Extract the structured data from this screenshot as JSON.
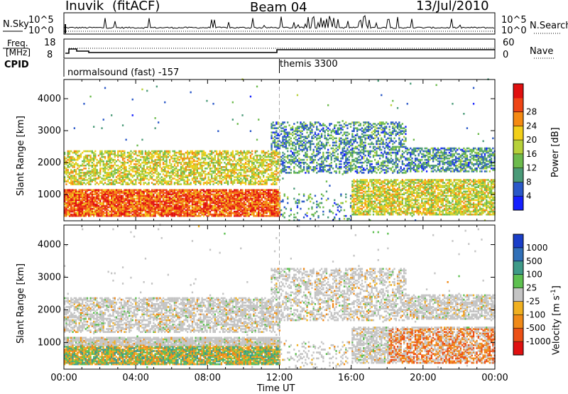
{
  "header": {
    "station": "Inuvik",
    "mode": "(fitACF)",
    "beam": "Beam 04",
    "date": "13/Jul/2010"
  },
  "noise_panel": {
    "left_label": "N.Sky",
    "right_label": "N.Search",
    "left_ticks": [
      "10^5",
      "10^0"
    ],
    "right_ticks": [
      "10^5",
      "10^0"
    ]
  },
  "freq_panel": {
    "left_label_1": "Freq.",
    "left_label_2": "[MHz]",
    "right_label": "Nave",
    "left_ticks": [
      "18",
      "8"
    ],
    "right_ticks": [
      "60",
      "0"
    ]
  },
  "cpid_panel": {
    "label": "CPID",
    "programs": [
      {
        "name": "normalsound (fast) -157",
        "start_hour": 0
      },
      {
        "name": "themis 3300",
        "start_hour": 12
      }
    ]
  },
  "chart_data": [
    {
      "type": "heatmap",
      "ylabel": "Slant Range [km]",
      "yticks": [
        "1000",
        "2000",
        "3000",
        "4000"
      ],
      "ylim": [
        180,
        4600
      ],
      "colorbar_label": "Power [dB]",
      "colorbar_ticks": [
        "4",
        "8",
        "12",
        "16",
        "20",
        "24",
        "28"
      ],
      "colors": [
        "#1520ff",
        "#2a58c8",
        "#4a9a78",
        "#6dbb4d",
        "#b7d13a",
        "#f2cf1a",
        "#f58a12",
        "#ef4515",
        "#e0100f"
      ],
      "bands": [
        {
          "hours": [
            0,
            12
          ],
          "range_km": [
            300,
            1100
          ],
          "level": "high"
        },
        {
          "hours": [
            0,
            12
          ],
          "range_km": [
            1300,
            2300
          ],
          "level": "medium"
        },
        {
          "hours": [
            12,
            19
          ],
          "range_km": [
            1700,
            3200
          ],
          "level": "medium"
        },
        {
          "hours": [
            16,
            24
          ],
          "range_km": [
            400,
            1400
          ],
          "level": "medium"
        },
        {
          "hours": [
            19,
            24
          ],
          "range_km": [
            1700,
            2400
          ],
          "level": "medium"
        }
      ]
    },
    {
      "type": "heatmap",
      "ylabel": "Slant Range [km]",
      "yticks": [
        "1000",
        "2000",
        "3000",
        "4000"
      ],
      "ylim": [
        180,
        4600
      ],
      "xlabel": "Time UT",
      "xticks": [
        "00:00",
        "04:00",
        "08:00",
        "12:00",
        "16:00",
        "20:00",
        "00:00"
      ],
      "colorbar_label": "Velocity [m s",
      "colorbar_label_sup": "-1",
      "colorbar_label_end": "]",
      "colorbar_ticks": [
        "1000",
        "500",
        "100",
        "25",
        "-25",
        "-100",
        "-500",
        "-1000"
      ],
      "colors": [
        "#1a3ec8",
        "#3170b8",
        "#3f9a88",
        "#5ec050",
        "#c4c4c4",
        "#f0b020",
        "#f08a18",
        "#ec5015",
        "#e01010"
      ]
    }
  ]
}
